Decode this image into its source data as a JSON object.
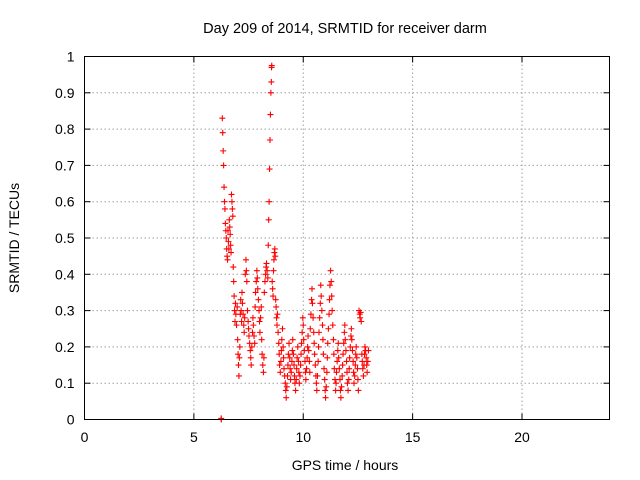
{
  "chart_data": {
    "type": "scatter",
    "title": "Day 209 of 2014, SRMTID for receiver darm",
    "xlabel": "GPS time / hours",
    "ylabel": "SRMTID / TECUs",
    "xlim": [
      0,
      24
    ],
    "ylim": [
      0,
      1
    ],
    "xticks": [
      0,
      5,
      10,
      15,
      20
    ],
    "xtick_labels": [
      "0",
      "5",
      "10",
      "15",
      "20"
    ],
    "yticks": [
      0,
      0.1,
      0.2,
      0.3,
      0.4,
      0.5,
      0.6,
      0.7,
      0.8,
      0.9,
      1
    ],
    "ytick_labels": [
      "0",
      "0.1",
      "0.2",
      "0.3",
      "0.4",
      "0.5",
      "0.6",
      "0.7",
      "0.8",
      "0.9",
      "1"
    ],
    "grid": true,
    "marker": "+",
    "color": "#ff0000",
    "series": [
      {
        "name": "darm",
        "points": [
          [
            6.25,
            0.0
          ],
          [
            6.25,
            0.003
          ],
          [
            6.3,
            0.83
          ],
          [
            6.32,
            0.79
          ],
          [
            6.34,
            0.74
          ],
          [
            6.36,
            0.7
          ],
          [
            6.38,
            0.64
          ],
          [
            6.4,
            0.6
          ],
          [
            6.42,
            0.58
          ],
          [
            6.44,
            0.54
          ],
          [
            6.46,
            0.52
          ],
          [
            6.48,
            0.5
          ],
          [
            6.5,
            0.47
          ],
          [
            6.52,
            0.45
          ],
          [
            6.54,
            0.44
          ],
          [
            6.56,
            0.52
          ],
          [
            6.58,
            0.49
          ],
          [
            6.6,
            0.47
          ],
          [
            6.62,
            0.55
          ],
          [
            6.64,
            0.53
          ],
          [
            6.66,
            0.51
          ],
          [
            6.68,
            0.48
          ],
          [
            6.7,
            0.46
          ],
          [
            6.72,
            0.62
          ],
          [
            6.74,
            0.6
          ],
          [
            6.76,
            0.58
          ],
          [
            6.78,
            0.56
          ],
          [
            6.8,
            0.42
          ],
          [
            6.82,
            0.38
          ],
          [
            6.84,
            0.34
          ],
          [
            6.86,
            0.3
          ],
          [
            6.88,
            0.27
          ],
          [
            6.9,
            0.32
          ],
          [
            6.92,
            0.29
          ],
          [
            6.95,
            0.26
          ],
          [
            6.98,
            0.31
          ],
          [
            7.0,
            0.22
          ],
          [
            7.02,
            0.18
          ],
          [
            7.04,
            0.15
          ],
          [
            7.06,
            0.12
          ],
          [
            7.08,
            0.17
          ],
          [
            7.1,
            0.2
          ],
          [
            7.12,
            0.29
          ],
          [
            7.14,
            0.33
          ],
          [
            7.16,
            0.3
          ],
          [
            7.18,
            0.27
          ],
          [
            7.2,
            0.35
          ],
          [
            7.22,
            0.32
          ],
          [
            7.25,
            0.29
          ],
          [
            7.28,
            0.26
          ],
          [
            7.3,
            0.24
          ],
          [
            7.32,
            0.28
          ],
          [
            7.35,
            0.4
          ],
          [
            7.38,
            0.44
          ],
          [
            7.4,
            0.41
          ],
          [
            7.42,
            0.38
          ],
          [
            7.45,
            0.3
          ],
          [
            7.48,
            0.27
          ],
          [
            7.5,
            0.25
          ],
          [
            7.52,
            0.23
          ],
          [
            7.55,
            0.21
          ],
          [
            7.58,
            0.19
          ],
          [
            7.6,
            0.17
          ],
          [
            7.62,
            0.15
          ],
          [
            7.65,
            0.2
          ],
          [
            7.68,
            0.24
          ],
          [
            7.7,
            0.28
          ],
          [
            7.72,
            0.26
          ],
          [
            7.75,
            0.23
          ],
          [
            7.78,
            0.21
          ],
          [
            7.8,
            0.31
          ],
          [
            7.82,
            0.35
          ],
          [
            7.85,
            0.38
          ],
          [
            7.88,
            0.41
          ],
          [
            7.9,
            0.39
          ],
          [
            7.92,
            0.36
          ],
          [
            7.95,
            0.33
          ],
          [
            7.98,
            0.3
          ],
          [
            8.0,
            0.27
          ],
          [
            8.02,
            0.24
          ],
          [
            8.05,
            0.28
          ],
          [
            8.08,
            0.31
          ],
          [
            8.1,
            0.22
          ],
          [
            8.12,
            0.18
          ],
          [
            8.15,
            0.15
          ],
          [
            8.18,
            0.13
          ],
          [
            8.2,
            0.17
          ],
          [
            8.22,
            0.35
          ],
          [
            8.25,
            0.38
          ],
          [
            8.28,
            0.4
          ],
          [
            8.3,
            0.42
          ],
          [
            8.32,
            0.43
          ],
          [
            8.35,
            0.41
          ],
          [
            8.38,
            0.39
          ],
          [
            8.4,
            0.48
          ],
          [
            8.42,
            0.55
          ],
          [
            8.44,
            0.6
          ],
          [
            8.46,
            0.69
          ],
          [
            8.48,
            0.77
          ],
          [
            8.5,
            0.84
          ],
          [
            8.52,
            0.9
          ],
          [
            8.54,
            0.93
          ],
          [
            8.55,
            0.97
          ],
          [
            8.56,
            0.975
          ],
          [
            8.58,
            0.38
          ],
          [
            8.6,
            0.36
          ],
          [
            8.62,
            0.34
          ],
          [
            8.64,
            0.41
          ],
          [
            8.66,
            0.44
          ],
          [
            8.68,
            0.46
          ],
          [
            8.7,
            0.47
          ],
          [
            8.72,
            0.45
          ],
          [
            8.74,
            0.33
          ],
          [
            8.76,
            0.31
          ],
          [
            8.78,
            0.28
          ],
          [
            8.8,
            0.26
          ],
          [
            8.82,
            0.29
          ],
          [
            8.85,
            0.24
          ],
          [
            8.88,
            0.21
          ],
          [
            8.9,
            0.18
          ],
          [
            8.92,
            0.15
          ],
          [
            8.95,
            0.13
          ],
          [
            8.98,
            0.16
          ],
          [
            9.0,
            0.19
          ],
          [
            9.02,
            0.22
          ],
          [
            9.05,
            0.25
          ],
          [
            9.08,
            0.2
          ],
          [
            9.1,
            0.17
          ],
          [
            9.12,
            0.14
          ],
          [
            9.15,
            0.12
          ],
          [
            9.18,
            0.1
          ],
          [
            9.2,
            0.08
          ],
          [
            9.22,
            0.06
          ],
          [
            9.25,
            0.09
          ],
          [
            9.28,
            0.12
          ],
          [
            9.3,
            0.15
          ],
          [
            9.32,
            0.18
          ],
          [
            9.35,
            0.21
          ],
          [
            9.38,
            0.17
          ],
          [
            9.4,
            0.14
          ],
          [
            9.42,
            0.11
          ],
          [
            9.45,
            0.13
          ],
          [
            9.48,
            0.16
          ],
          [
            9.5,
            0.19
          ],
          [
            9.52,
            0.22
          ],
          [
            9.55,
            0.18
          ],
          [
            9.58,
            0.15
          ],
          [
            9.6,
            0.12
          ],
          [
            9.62,
            0.1
          ],
          [
            9.65,
            0.08
          ],
          [
            9.68,
            0.11
          ],
          [
            9.7,
            0.14
          ],
          [
            9.72,
            0.17
          ],
          [
            9.75,
            0.2
          ],
          [
            9.78,
            0.16
          ],
          [
            9.8,
            0.13
          ],
          [
            9.82,
            0.1
          ],
          [
            9.85,
            0.12
          ],
          [
            9.88,
            0.15
          ],
          [
            9.9,
            0.18
          ],
          [
            9.92,
            0.21
          ],
          [
            9.95,
            0.24
          ],
          [
            9.98,
            0.28
          ],
          [
            10.0,
            0.26
          ],
          [
            10.02,
            0.22
          ],
          [
            10.05,
            0.19
          ],
          [
            10.08,
            0.16
          ],
          [
            10.1,
            0.13
          ],
          [
            10.12,
            0.11
          ],
          [
            10.15,
            0.14
          ],
          [
            10.18,
            0.17
          ],
          [
            10.2,
            0.2
          ],
          [
            10.22,
            0.23
          ],
          [
            10.25,
            0.19
          ],
          [
            10.28,
            0.16
          ],
          [
            10.3,
            0.13
          ],
          [
            10.32,
            0.25
          ],
          [
            10.35,
            0.29
          ],
          [
            10.38,
            0.33
          ],
          [
            10.4,
            0.36
          ],
          [
            10.42,
            0.32
          ],
          [
            10.45,
            0.28
          ],
          [
            10.48,
            0.24
          ],
          [
            10.5,
            0.21
          ],
          [
            10.52,
            0.18
          ],
          [
            10.55,
            0.15
          ],
          [
            10.58,
            0.12
          ],
          [
            10.6,
            0.1
          ],
          [
            10.62,
            0.08
          ],
          [
            10.65,
            0.12
          ],
          [
            10.68,
            0.16
          ],
          [
            10.7,
            0.2
          ],
          [
            10.72,
            0.24
          ],
          [
            10.75,
            0.28
          ],
          [
            10.78,
            0.32
          ],
          [
            10.8,
            0.37
          ],
          [
            10.82,
            0.34
          ],
          [
            10.85,
            0.3
          ],
          [
            10.88,
            0.26
          ],
          [
            10.9,
            0.22
          ],
          [
            10.92,
            0.18
          ],
          [
            10.95,
            0.14
          ],
          [
            10.98,
            0.11
          ],
          [
            11.0,
            0.08
          ],
          [
            11.02,
            0.06
          ],
          [
            11.05,
            0.09
          ],
          [
            11.08,
            0.13
          ],
          [
            11.1,
            0.17
          ],
          [
            11.12,
            0.21
          ],
          [
            11.15,
            0.25
          ],
          [
            11.18,
            0.29
          ],
          [
            11.2,
            0.33
          ],
          [
            11.22,
            0.37
          ],
          [
            11.25,
            0.41
          ],
          [
            11.28,
            0.38
          ],
          [
            11.3,
            0.34
          ],
          [
            11.32,
            0.3
          ],
          [
            11.35,
            0.26
          ],
          [
            11.38,
            0.22
          ],
          [
            11.4,
            0.18
          ],
          [
            11.42,
            0.14
          ],
          [
            11.45,
            0.11
          ],
          [
            11.48,
            0.08
          ],
          [
            11.5,
            0.1
          ],
          [
            11.52,
            0.13
          ],
          [
            11.55,
            0.16
          ],
          [
            11.58,
            0.19
          ],
          [
            11.6,
            0.21
          ],
          [
            11.62,
            0.17
          ],
          [
            11.65,
            0.14
          ],
          [
            11.68,
            0.11
          ],
          [
            11.7,
            0.08
          ],
          [
            11.72,
            0.06
          ],
          [
            11.75,
            0.09
          ],
          [
            11.78,
            0.12
          ],
          [
            11.8,
            0.15
          ],
          [
            11.82,
            0.18
          ],
          [
            11.85,
            0.21
          ],
          [
            11.88,
            0.24
          ],
          [
            11.9,
            0.26
          ],
          [
            11.92,
            0.22
          ],
          [
            11.95,
            0.19
          ],
          [
            11.98,
            0.16
          ],
          [
            12.0,
            0.13
          ],
          [
            12.02,
            0.1
          ],
          [
            12.05,
            0.08
          ],
          [
            12.08,
            0.11
          ],
          [
            12.1,
            0.14
          ],
          [
            12.12,
            0.17
          ],
          [
            12.15,
            0.2
          ],
          [
            12.18,
            0.23
          ],
          [
            12.2,
            0.25
          ],
          [
            12.22,
            0.22
          ],
          [
            12.25,
            0.19
          ],
          [
            12.28,
            0.16
          ],
          [
            12.3,
            0.13
          ],
          [
            12.32,
            0.1
          ],
          [
            12.35,
            0.12
          ],
          [
            12.38,
            0.15
          ],
          [
            12.4,
            0.18
          ],
          [
            12.42,
            0.2
          ],
          [
            12.45,
            0.17
          ],
          [
            12.48,
            0.14
          ],
          [
            12.5,
            0.11
          ],
          [
            12.52,
            0.08
          ],
          [
            12.55,
            0.3
          ],
          [
            12.58,
            0.29
          ],
          [
            12.6,
            0.28
          ],
          [
            12.62,
            0.295
          ],
          [
            12.65,
            0.27
          ],
          [
            12.68,
            0.18
          ],
          [
            12.7,
            0.16
          ],
          [
            12.72,
            0.14
          ],
          [
            12.75,
            0.12
          ],
          [
            12.78,
            0.15
          ],
          [
            12.8,
            0.18
          ],
          [
            12.82,
            0.2
          ],
          [
            12.85,
            0.19
          ],
          [
            12.88,
            0.17
          ],
          [
            12.9,
            0.15
          ],
          [
            12.92,
            0.13
          ],
          [
            12.95,
            0.16
          ],
          [
            12.98,
            0.19
          ]
        ]
      }
    ]
  }
}
